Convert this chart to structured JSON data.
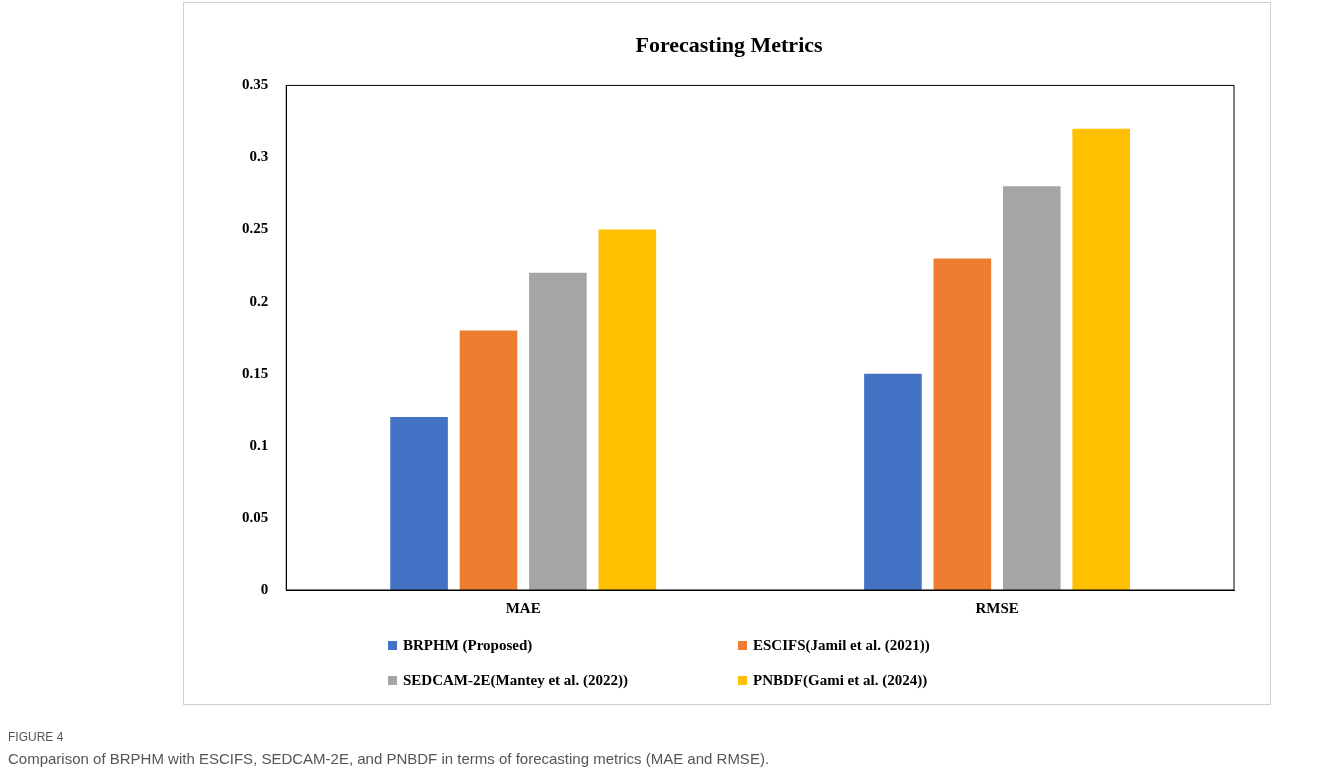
{
  "chart_data": {
    "type": "bar",
    "title": "Forecasting Metrics",
    "categories": [
      "MAE",
      "RMSE"
    ],
    "series": [
      {
        "name": "BRPHM (Proposed)",
        "color": "#4472c4",
        "values": [
          0.12,
          0.15
        ]
      },
      {
        "name": "ESCIFS(Jamil et al. (2021))",
        "color": "#ed7d31",
        "values": [
          0.18,
          0.23
        ]
      },
      {
        "name": "SEDCAM-2E(Mantey et al. (2022))",
        "color": "#a5a5a5",
        "values": [
          0.22,
          0.28
        ]
      },
      {
        "name": "PNBDF(Gami et al. (2024))",
        "color": "#ffc000",
        "values": [
          0.25,
          0.32
        ]
      }
    ],
    "ylim": [
      0,
      0.35
    ],
    "yticks": [
      0,
      0.05,
      0.1,
      0.15,
      0.2,
      0.25,
      0.3,
      0.35
    ],
    "legend": "bottom",
    "annotations": [
      "FIGURE 4",
      "Comparison of BRPHM with ESCIFS, SEDCAM-2E, and PNBDF in terms of forecasting metrics (MAE and RMSE)."
    ]
  }
}
